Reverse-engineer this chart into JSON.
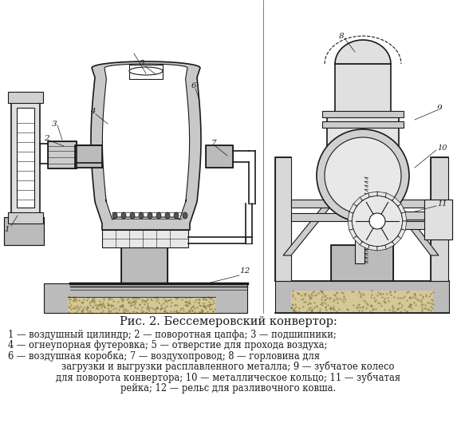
{
  "title": "Рис. 2. Бессемеровский конвертор:",
  "caption_line1": "1 — воздушный цилиндр; 2 — поворотная цапфа; 3 — подшипники;",
  "caption_line2": "4 — огнеупорная футеровка; 5 — отверстие для прохода воздуха;",
  "caption_line3": "6 — воздушная коробка; 7 — воздухопровод; 8 — горловина для",
  "caption_line4": "загрузки и выгрузки расплавленного металла; 9 — зубчатое колесо",
  "caption_line5": "для поворота конвертора; 10 — металлическое кольцо; 11 — зубчатая",
  "caption_line6": "рейка; 12 — рельс для разливочного ковша.",
  "bg": "#ffffff",
  "lc": "#1a1a1a",
  "hatch_fc": "#cccccc",
  "title_fs": 10.5,
  "cap_fs": 8.3,
  "lbl_fs": 7.5
}
